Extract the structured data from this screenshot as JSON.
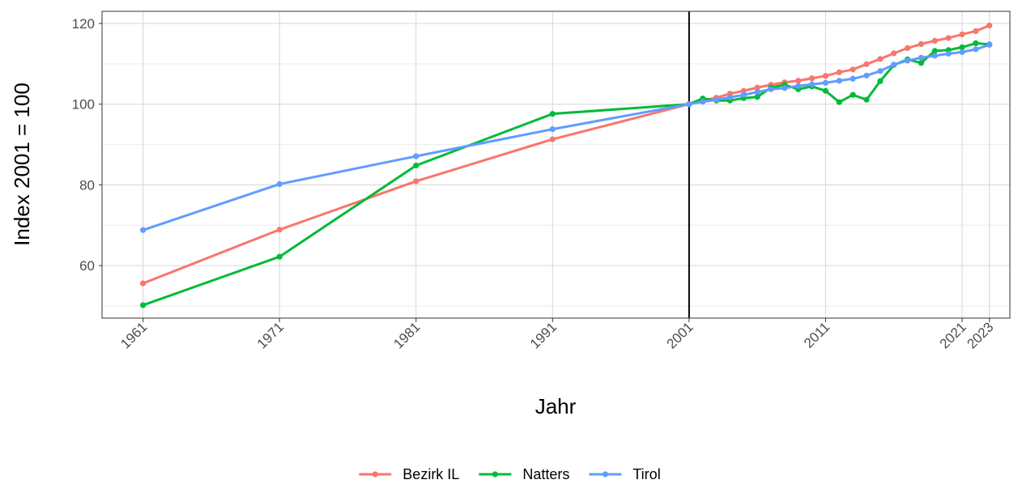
{
  "chart_data": {
    "type": "line",
    "title": "",
    "xlabel": "Jahr",
    "ylabel": "Index 2001 = 100",
    "xlim": [
      1958,
      2024.5
    ],
    "ylim": [
      47,
      123
    ],
    "x_ticks": [
      1961,
      1971,
      1981,
      1991,
      2001,
      2011,
      2021,
      2023
    ],
    "y_ticks": [
      60,
      80,
      100,
      120
    ],
    "grid": true,
    "legend_position": "bottom",
    "reference_line": {
      "x": 2001,
      "color": "#000000"
    },
    "series": [
      {
        "name": "Bezirk IL",
        "color": "#F8766D",
        "points": [
          [
            1961,
            55.6
          ],
          [
            1971,
            68.9
          ],
          [
            1981,
            80.9
          ],
          [
            1991,
            91.3
          ],
          [
            2001,
            100
          ],
          [
            2002,
            100.9
          ],
          [
            2003,
            101.6
          ],
          [
            2004,
            102.6
          ],
          [
            2005,
            103.3
          ],
          [
            2006,
            104.1
          ],
          [
            2007,
            104.8
          ],
          [
            2008,
            105.4
          ],
          [
            2009,
            105.8
          ],
          [
            2010,
            106.4
          ],
          [
            2011,
            107.0
          ],
          [
            2012,
            107.9
          ],
          [
            2013,
            108.6
          ],
          [
            2014,
            109.9
          ],
          [
            2015,
            111.2
          ],
          [
            2016,
            112.6
          ],
          [
            2017,
            113.9
          ],
          [
            2018,
            114.9
          ],
          [
            2019,
            115.7
          ],
          [
            2020,
            116.4
          ],
          [
            2021,
            117.3
          ],
          [
            2022,
            118.1
          ],
          [
            2023,
            119.5
          ]
        ]
      },
      {
        "name": "Natters",
        "color": "#00BA38",
        "points": [
          [
            1961,
            50.2
          ],
          [
            1971,
            62.2
          ],
          [
            1981,
            84.8
          ],
          [
            1991,
            97.6
          ],
          [
            2001,
            100
          ],
          [
            2002,
            101.4
          ],
          [
            2003,
            100.9
          ],
          [
            2004,
            100.9
          ],
          [
            2005,
            101.5
          ],
          [
            2006,
            101.8
          ],
          [
            2007,
            104.1
          ],
          [
            2008,
            104.8
          ],
          [
            2009,
            103.7
          ],
          [
            2010,
            104.4
          ],
          [
            2011,
            103.3
          ],
          [
            2012,
            100.5
          ],
          [
            2013,
            102.3
          ],
          [
            2014,
            101.1
          ],
          [
            2015,
            105.7
          ],
          [
            2016,
            109.7
          ],
          [
            2017,
            111.1
          ],
          [
            2018,
            110.2
          ],
          [
            2019,
            113.2
          ],
          [
            2020,
            113.4
          ],
          [
            2021,
            114.1
          ],
          [
            2022,
            115.1
          ],
          [
            2023,
            114.8
          ]
        ]
      },
      {
        "name": "Tirol",
        "color": "#619CFF",
        "points": [
          [
            1961,
            68.8
          ],
          [
            1971,
            80.2
          ],
          [
            1981,
            87.1
          ],
          [
            1991,
            93.8
          ],
          [
            2001,
            100
          ],
          [
            2002,
            100.6
          ],
          [
            2003,
            101.1
          ],
          [
            2004,
            101.7
          ],
          [
            2005,
            102.3
          ],
          [
            2006,
            103.0
          ],
          [
            2007,
            103.7
          ],
          [
            2008,
            104.0
          ],
          [
            2009,
            104.5
          ],
          [
            2010,
            104.9
          ],
          [
            2011,
            105.3
          ],
          [
            2012,
            105.8
          ],
          [
            2013,
            106.3
          ],
          [
            2014,
            107.1
          ],
          [
            2015,
            108.2
          ],
          [
            2016,
            109.8
          ],
          [
            2017,
            110.8
          ],
          [
            2018,
            111.5
          ],
          [
            2019,
            112.0
          ],
          [
            2020,
            112.5
          ],
          [
            2021,
            112.9
          ],
          [
            2022,
            113.6
          ],
          [
            2023,
            114.7
          ]
        ]
      }
    ]
  }
}
